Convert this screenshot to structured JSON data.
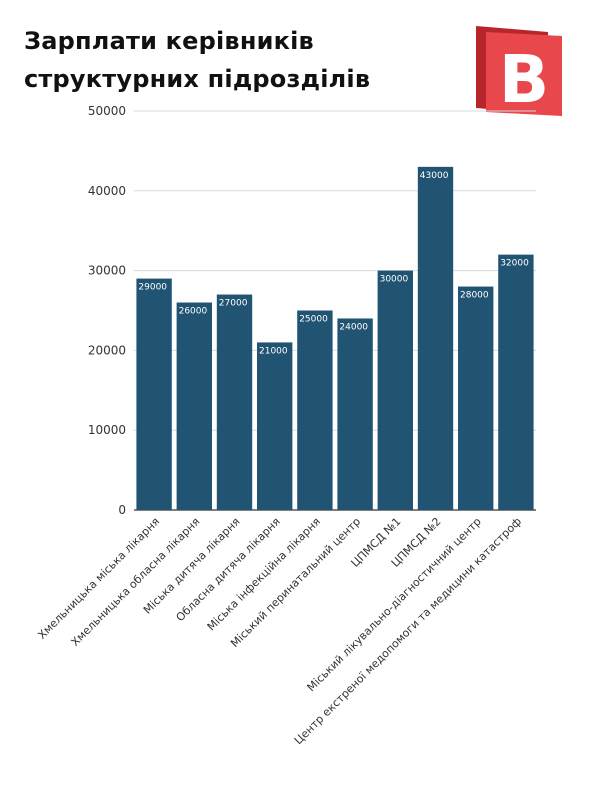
{
  "title_lines": [
    "Зарплати керівників",
    "структурних підрозділів"
  ],
  "logo": {
    "letter": "B",
    "colors": {
      "front": "#e8484c",
      "back": "#b8262b",
      "letter": "#ffffff"
    }
  },
  "colors": {
    "bar": "#215372",
    "grid": "#d9d9d9",
    "axis": "#333333"
  },
  "chart_data": {
    "type": "bar",
    "categories": [
      "Хмельницька міська лікарня",
      "Хмельницька обласна лікарня",
      "Міська дитяча лікарня",
      "Обласна дитяча лікарня",
      "Міська інфекційна лікарня",
      "Міський перинатальний центр",
      "ЦПМСД №1",
      "ЦПМСД №2",
      "Міський лікувально-діагностичний центр",
      "Центр екстреної медопомоги та медицини катастроф"
    ],
    "values": [
      29000,
      26000,
      27000,
      21000,
      25000,
      24000,
      30000,
      43000,
      28000,
      32000
    ],
    "ylim": [
      0,
      50000
    ],
    "yticks": [
      "0",
      "10000",
      "20000",
      "30000",
      "40000",
      "50000"
    ],
    "grid": true,
    "data_labels": true
  }
}
